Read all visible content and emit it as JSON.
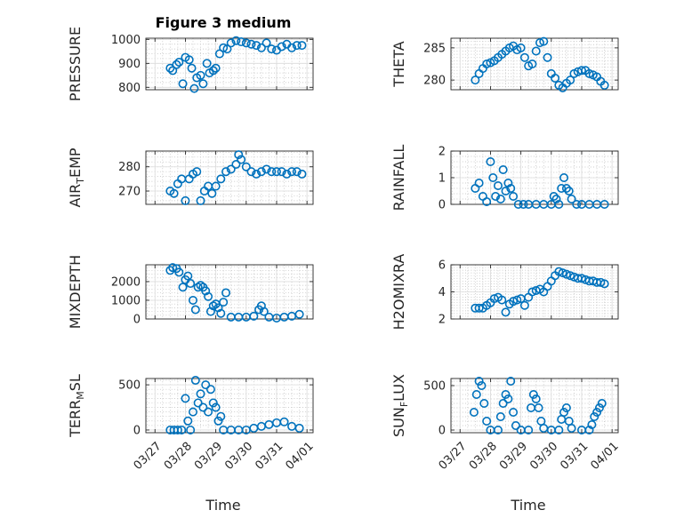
{
  "figure": {
    "title": "Figure 3 medium",
    "xlabel": "Time",
    "x_ticks": [
      "03/27",
      "03/28",
      "03/29",
      "03/30",
      "03/31",
      "04/01"
    ],
    "marker_color": "#0072bd"
  },
  "chart_data": [
    {
      "type": "scatter",
      "ylabel": "PRESSURE",
      "ylim": [
        790,
        1005
      ],
      "yticks": [
        800,
        900,
        1000
      ],
      "grid": true,
      "x": [
        "03/27 12:00",
        "03/27 14:00",
        "03/27 17:00",
        "03/27 19:00",
        "03/27 22:00",
        "03/28 00:00",
        "03/28 03:00",
        "03/28 05:00",
        "03/28 07:00",
        "03/28 09:00",
        "03/28 12:00",
        "03/28 14:00",
        "03/28 17:00",
        "03/28 19:00",
        "03/28 22:00",
        "03/29 00:00",
        "03/29 03:00",
        "03/29 06:00",
        "03/29 09:00",
        "03/29 12:00",
        "03/29 16:00",
        "03/29 20:00",
        "03/30 00:00",
        "03/30 04:00",
        "03/30 08:00",
        "03/30 12:00",
        "03/30 16:00",
        "03/30 20:00",
        "03/31 00:00",
        "03/31 04:00",
        "03/31 08:00",
        "03/31 12:00",
        "03/31 16:00",
        "03/31 20:00"
      ],
      "y": [
        880,
        870,
        895,
        905,
        815,
        925,
        915,
        880,
        795,
        840,
        850,
        815,
        900,
        860,
        870,
        880,
        940,
        965,
        960,
        985,
        995,
        990,
        985,
        980,
        975,
        965,
        985,
        960,
        955,
        970,
        980,
        965,
        975,
        975
      ]
    },
    {
      "type": "scatter",
      "ylabel": "THETA",
      "ylim": [
        278.5,
        286.5
      ],
      "yticks": [
        280,
        285
      ],
      "grid": true,
      "x": [
        "03/27 12:00",
        "03/27 15:00",
        "03/27 18:00",
        "03/27 21:00",
        "03/28 00:00",
        "03/28 03:00",
        "03/28 06:00",
        "03/28 09:00",
        "03/28 12:00",
        "03/28 15:00",
        "03/28 18:00",
        "03/28 21:00",
        "03/29 00:00",
        "03/29 03:00",
        "03/29 06:00",
        "03/29 09:00",
        "03/29 12:00",
        "03/29 15:00",
        "03/29 18:00",
        "03/29 21:00",
        "03/30 00:00",
        "03/30 03:00",
        "03/30 06:00",
        "03/30 09:00",
        "03/30 12:00",
        "03/30 15:00",
        "03/30 18:00",
        "03/30 21:00",
        "03/31 00:00",
        "03/31 03:00",
        "03/31 06:00",
        "03/31 09:00",
        "03/31 12:00",
        "03/31 15:00",
        "03/31 18:00"
      ],
      "y": [
        280.0,
        281.0,
        281.8,
        282.5,
        282.7,
        283.0,
        283.5,
        284.0,
        284.5,
        285.0,
        285.3,
        284.7,
        285.0,
        283.5,
        282.2,
        282.5,
        284.5,
        285.8,
        286.0,
        283.5,
        281.0,
        280.3,
        279.2,
        278.8,
        279.5,
        280.0,
        281.0,
        281.3,
        281.5,
        281.5,
        281.0,
        280.8,
        280.5,
        279.8,
        279.2
      ]
    },
    {
      "type": "scatter",
      "ylabel": "AIR_TEMP",
      "ylim": [
        264.5,
        286.5
      ],
      "yticks": [
        270,
        280
      ],
      "grid": true,
      "x": [
        "03/27 12:00",
        "03/27 15:00",
        "03/27 18:00",
        "03/27 21:00",
        "03/28 00:00",
        "03/28 03:00",
        "03/28 06:00",
        "03/28 09:00",
        "03/28 12:00",
        "03/28 15:00",
        "03/28 18:00",
        "03/28 21:00",
        "03/29 00:00",
        "03/29 04:00",
        "03/29 08:00",
        "03/29 12:00",
        "03/29 16:00",
        "03/29 18:00",
        "03/29 20:00",
        "03/30 00:00",
        "03/30 04:00",
        "03/30 08:00",
        "03/30 12:00",
        "03/30 16:00",
        "03/30 20:00",
        "03/31 00:00",
        "03/31 04:00",
        "03/31 08:00",
        "03/31 12:00",
        "03/31 16:00",
        "03/31 20:00"
      ],
      "y": [
        270,
        269,
        273,
        275,
        266,
        275,
        277,
        278,
        266,
        270,
        272,
        269,
        272,
        275,
        278,
        279,
        281,
        285,
        283,
        280,
        278,
        277,
        278,
        279,
        278,
        278,
        278,
        277,
        278,
        278,
        277
      ]
    },
    {
      "type": "scatter",
      "ylabel": "RAINFALL",
      "ylim": [
        0,
        2
      ],
      "yticks": [
        0,
        1,
        2
      ],
      "grid": true,
      "x": [
        "03/27 12:00",
        "03/27 15:00",
        "03/27 18:00",
        "03/27 21:00",
        "03/28 00:00",
        "03/28 02:00",
        "03/28 04:00",
        "03/28 06:00",
        "03/28 08:00",
        "03/28 10:00",
        "03/28 12:00",
        "03/28 14:00",
        "03/28 16:00",
        "03/28 18:00",
        "03/28 22:00",
        "03/29 02:00",
        "03/29 06:00",
        "03/29 12:00",
        "03/29 18:00",
        "03/30 00:00",
        "03/30 02:00",
        "03/30 04:00",
        "03/30 06:00",
        "03/30 08:00",
        "03/30 10:00",
        "03/30 12:00",
        "03/30 14:00",
        "03/30 16:00",
        "03/30 20:00",
        "03/31 00:00",
        "03/31 06:00",
        "03/31 12:00",
        "03/31 18:00"
      ],
      "y": [
        0.6,
        0.8,
        0.3,
        0.1,
        1.6,
        1.0,
        0.3,
        0.7,
        0.2,
        1.3,
        0.5,
        0.8,
        0.6,
        0.3,
        0,
        0,
        0,
        0,
        0,
        0,
        0.3,
        0.2,
        0,
        0.6,
        1.0,
        0.6,
        0.5,
        0.2,
        0,
        0,
        0,
        0,
        0
      ]
    },
    {
      "type": "scatter",
      "ylabel": "MIXDEPTH",
      "ylim": [
        0,
        2900
      ],
      "yticks": [
        0,
        1000,
        2000
      ],
      "grid": true,
      "x": [
        "03/27 12:00",
        "03/27 14:00",
        "03/27 17:00",
        "03/27 19:00",
        "03/27 22:00",
        "03/28 00:00",
        "03/28 02:00",
        "03/28 04:00",
        "03/28 06:00",
        "03/28 08:00",
        "03/28 10:00",
        "03/28 12:00",
        "03/28 14:00",
        "03/28 16:00",
        "03/28 18:00",
        "03/28 20:00",
        "03/28 22:00",
        "03/29 00:00",
        "03/29 02:00",
        "03/29 04:00",
        "03/29 06:00",
        "03/29 08:00",
        "03/29 12:00",
        "03/29 18:00",
        "03/30 00:00",
        "03/30 06:00",
        "03/30 10:00",
        "03/30 12:00",
        "03/30 14:00",
        "03/30 18:00",
        "03/31 00:00",
        "03/31 06:00",
        "03/31 12:00",
        "03/31 18:00"
      ],
      "y": [
        2600,
        2750,
        2700,
        2500,
        1700,
        2100,
        2300,
        1900,
        1000,
        500,
        1700,
        1800,
        1700,
        1500,
        1200,
        400,
        700,
        800,
        600,
        300,
        900,
        1400,
        100,
        100,
        100,
        150,
        500,
        700,
        400,
        100,
        50,
        100,
        150,
        250
      ]
    },
    {
      "type": "scatter",
      "ylabel": "H2OMIXRA",
      "ylim": [
        2,
        6
      ],
      "yticks": [
        2,
        4,
        6
      ],
      "grid": true,
      "x": [
        "03/27 12:00",
        "03/27 15:00",
        "03/27 18:00",
        "03/27 21:00",
        "03/28 00:00",
        "03/28 03:00",
        "03/28 06:00",
        "03/28 09:00",
        "03/28 12:00",
        "03/28 15:00",
        "03/28 18:00",
        "03/28 21:00",
        "03/29 00:00",
        "03/29 03:00",
        "03/29 06:00",
        "03/29 09:00",
        "03/29 12:00",
        "03/29 15:00",
        "03/29 18:00",
        "03/29 21:00",
        "03/30 00:00",
        "03/30 03:00",
        "03/30 06:00",
        "03/30 09:00",
        "03/30 12:00",
        "03/30 15:00",
        "03/30 18:00",
        "03/30 21:00",
        "03/31 00:00",
        "03/31 03:00",
        "03/31 06:00",
        "03/31 09:00",
        "03/31 12:00",
        "03/31 15:00",
        "03/31 18:00"
      ],
      "y": [
        2.8,
        2.8,
        2.8,
        3.0,
        3.2,
        3.5,
        3.6,
        3.4,
        2.5,
        3.1,
        3.3,
        3.4,
        3.5,
        3.0,
        3.6,
        4.0,
        4.1,
        4.2,
        4.0,
        4.4,
        4.8,
        5.2,
        5.5,
        5.4,
        5.3,
        5.2,
        5.1,
        5.0,
        5.0,
        4.9,
        4.8,
        4.8,
        4.7,
        4.7,
        4.6
      ]
    },
    {
      "type": "scatter",
      "ylabel": "TERR_MSL",
      "ylim": [
        -30,
        570
      ],
      "yticks": [
        0,
        500
      ],
      "grid": true,
      "x": [
        "03/27 12:00",
        "03/27 15:00",
        "03/27 18:00",
        "03/27 21:00",
        "03/28 00:00",
        "03/28 02:00",
        "03/28 04:00",
        "03/28 06:00",
        "03/28 08:00",
        "03/28 10:00",
        "03/28 12:00",
        "03/28 14:00",
        "03/28 16:00",
        "03/28 18:00",
        "03/28 20:00",
        "03/28 22:00",
        "03/29 00:00",
        "03/29 02:00",
        "03/29 04:00",
        "03/29 06:00",
        "03/29 12:00",
        "03/29 18:00",
        "03/30 00:00",
        "03/30 06:00",
        "03/30 12:00",
        "03/30 18:00",
        "03/31 00:00",
        "03/31 06:00",
        "03/31 12:00",
        "03/31 18:00"
      ],
      "y": [
        0,
        0,
        0,
        0,
        350,
        100,
        0,
        200,
        550,
        300,
        400,
        250,
        500,
        200,
        450,
        300,
        250,
        100,
        150,
        0,
        0,
        0,
        0,
        20,
        40,
        60,
        80,
        90,
        40,
        20
      ]
    },
    {
      "type": "scatter",
      "ylabel": "SUN_FLUX",
      "ylim": [
        -30,
        580
      ],
      "yticks": [
        0,
        500
      ],
      "grid": true,
      "x": [
        "03/27 11:00",
        "03/27 13:00",
        "03/27 15:00",
        "03/27 17:00",
        "03/27 19:00",
        "03/27 21:00",
        "03/28 00:00",
        "03/28 06:00",
        "03/28 08:00",
        "03/28 10:00",
        "03/28 12:00",
        "03/28 14:00",
        "03/28 16:00",
        "03/28 18:00",
        "03/28 20:00",
        "03/29 00:00",
        "03/29 06:00",
        "03/29 08:00",
        "03/29 10:00",
        "03/29 12:00",
        "03/29 14:00",
        "03/29 16:00",
        "03/29 18:00",
        "03/30 00:00",
        "03/30 06:00",
        "03/30 08:00",
        "03/30 10:00",
        "03/30 12:00",
        "03/30 14:00",
        "03/30 16:00",
        "03/31 00:00",
        "03/31 06:00",
        "03/31 08:00",
        "03/31 10:00",
        "03/31 12:00",
        "03/31 14:00",
        "03/31 16:00"
      ],
      "y": [
        200,
        400,
        550,
        500,
        300,
        100,
        0,
        0,
        150,
        300,
        400,
        350,
        550,
        200,
        50,
        0,
        0,
        250,
        400,
        350,
        250,
        100,
        20,
        0,
        0,
        120,
        200,
        250,
        100,
        20,
        0,
        0,
        60,
        150,
        200,
        250,
        300
      ]
    }
  ]
}
